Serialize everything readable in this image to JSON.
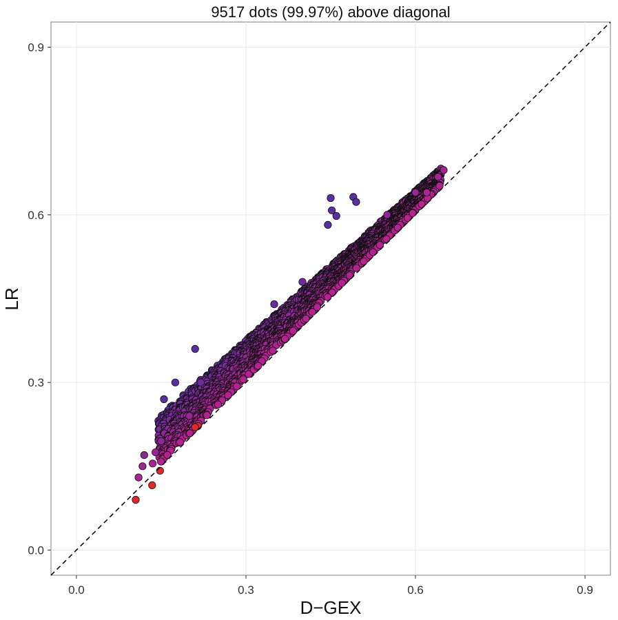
{
  "chart_data": {
    "type": "scatter",
    "title": "9517 dots (99.97%) above diagonal",
    "xlabel": "D−GEX",
    "ylabel": "LR",
    "xlim": [
      -0.045,
      0.945
    ],
    "ylim": [
      -0.045,
      0.945
    ],
    "xticks": [
      "0.0",
      "0.3",
      "0.6",
      "0.9"
    ],
    "yticks": [
      "0.0",
      "0.3",
      "0.6",
      "0.9"
    ],
    "grid": true,
    "reference_line": "y = x (dashed)",
    "color_note": "points colored red-magenta near diagonal to purple-blue farther above it",
    "colors": {
      "far_above": "#5a2fa0",
      "near_diagonal": "#c02090",
      "on_diagonal": "#e0282a",
      "outline": "#111111"
    },
    "points": [
      {
        "x": 0.105,
        "y": 0.09
      },
      {
        "x": 0.134,
        "y": 0.116
      },
      {
        "x": 0.148,
        "y": 0.142
      },
      {
        "x": 0.11,
        "y": 0.13
      },
      {
        "x": 0.117,
        "y": 0.15
      },
      {
        "x": 0.12,
        "y": 0.17
      },
      {
        "x": 0.14,
        "y": 0.175
      },
      {
        "x": 0.135,
        "y": 0.155
      },
      {
        "x": 0.15,
        "y": 0.195
      },
      {
        "x": 0.155,
        "y": 0.27
      },
      {
        "x": 0.175,
        "y": 0.3
      },
      {
        "x": 0.21,
        "y": 0.36
      },
      {
        "x": 0.215,
        "y": 0.222
      },
      {
        "x": 0.21,
        "y": 0.22
      },
      {
        "x": 0.2,
        "y": 0.24
      },
      {
        "x": 0.22,
        "y": 0.3
      },
      {
        "x": 0.35,
        "y": 0.44
      },
      {
        "x": 0.4,
        "y": 0.48
      },
      {
        "x": 0.45,
        "y": 0.63
      },
      {
        "x": 0.452,
        "y": 0.608
      },
      {
        "x": 0.445,
        "y": 0.582
      },
      {
        "x": 0.46,
        "y": 0.598
      },
      {
        "x": 0.49,
        "y": 0.632
      },
      {
        "x": 0.495,
        "y": 0.623
      },
      {
        "x": 0.55,
        "y": 0.6
      },
      {
        "x": 0.6,
        "y": 0.64
      },
      {
        "x": 0.62,
        "y": 0.64
      },
      {
        "x": 0.64,
        "y": 0.668
      },
      {
        "x": 0.65,
        "y": 0.68
      }
    ]
  }
}
